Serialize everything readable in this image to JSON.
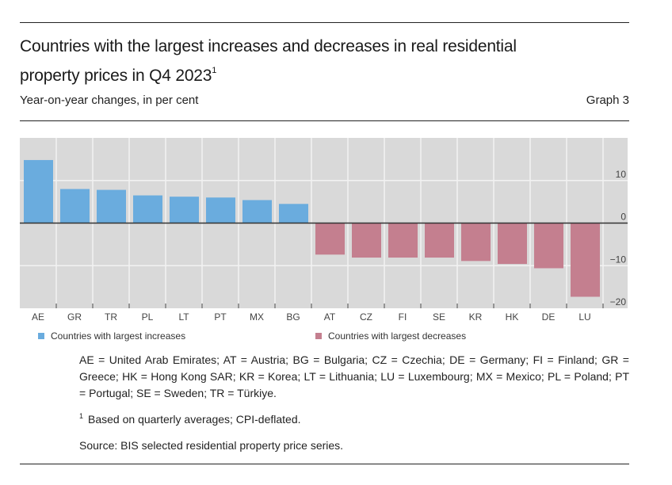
{
  "header": {
    "title": "Countries with the largest increases and decreases in real residential property prices in Q4 2023",
    "title_footnote_mark": "1",
    "subtitle": "Year-on-year changes, in per cent",
    "graph_number": "Graph 3"
  },
  "colors": {
    "increase": "#6aacde",
    "decrease": "#c47f8f",
    "plot_bg": "#d9d9d9",
    "grid": "#f2f2f2",
    "zero_line": "#333333"
  },
  "chart_data": {
    "type": "bar",
    "title": "Countries with the largest increases and decreases in real residential property prices in Q4 2023",
    "subtitle": "Year-on-year changes, in per cent",
    "xlabel": "",
    "ylabel": "",
    "y_axis_position": "right",
    "ylim": [
      -20,
      20
    ],
    "yticks": [
      10,
      0,
      -10,
      -20
    ],
    "ytick_labels": [
      "10",
      "0",
      "−10",
      "−20"
    ],
    "grid": true,
    "legend_position": "bottom",
    "categories": [
      "AE",
      "GR",
      "TR",
      "PL",
      "LT",
      "PT",
      "MX",
      "BG",
      "AT",
      "CZ",
      "FI",
      "SE",
      "KR",
      "HK",
      "DE",
      "LU"
    ],
    "series": [
      {
        "name": "Countries with largest increases",
        "color": "#6aacde",
        "values": [
          14.8,
          8.0,
          7.8,
          6.5,
          6.2,
          6.0,
          5.4,
          4.5,
          null,
          null,
          null,
          null,
          null,
          null,
          null,
          null
        ]
      },
      {
        "name": "Countries with largest decreases",
        "color": "#c47f8f",
        "values": [
          null,
          null,
          null,
          null,
          null,
          null,
          null,
          null,
          -7.4,
          -8.1,
          -8.1,
          -8.1,
          -8.9,
          -9.6,
          -10.6,
          -17.3
        ]
      }
    ]
  },
  "legend": {
    "increase_label": "Countries with largest increases",
    "decrease_label": "Countries with largest decreases"
  },
  "notes": {
    "abbreviations": "AE = United Arab Emirates; AT = Austria; BG = Bulgaria; CZ = Czechia; DE = Germany; FI = Finland; GR = Greece; HK = Hong Kong SAR; KR = Korea; LT = Lithuania; LU = Luxembourg; MX = Mexico; PL = Poland; PT = Portugal; SE = Sweden; TR = Türkiye.",
    "footnote_mark": "1",
    "footnote": "Based on quarterly averages; CPI-deflated.",
    "source": "Source: BIS selected residential property price series."
  }
}
